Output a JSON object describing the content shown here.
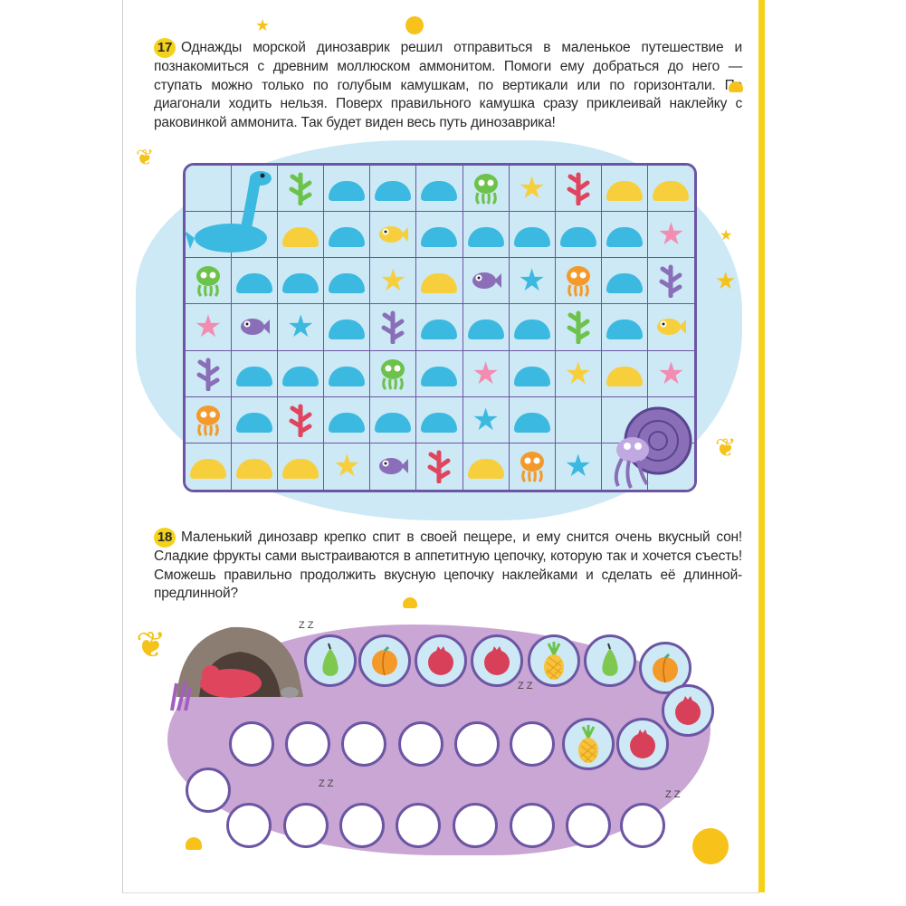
{
  "task17": {
    "number": "17",
    "text": "Однажды морской динозаврик решил отправиться в маленькое путешествие и познакомиться с древним моллюском аммонитом. Помоги ему добраться до него — ступать можно только по голубым камушкам, по вертикали или по горизонтали. По диагонали ходить нельзя. Поверх правильного камушка сразу приклеивай наклейку с раковинкой аммонита. Так будет виден весь путь динозаврика!"
  },
  "grid": {
    "rows": [
      [
        "dino",
        "dino",
        "seaweed-green",
        "blue",
        "blue",
        "blue",
        "jellyfish-green",
        "star-yellow",
        "seaweed-red",
        "yellow",
        "yellow"
      ],
      [
        "dino",
        "dino",
        "yellow",
        "blue",
        "fish-yellow",
        "blue",
        "blue",
        "blue",
        "blue",
        "blue",
        "star-pink"
      ],
      [
        "jellyfish-green",
        "blue",
        "blue",
        "blue",
        "star-yellow",
        "yellow",
        "fish-purple",
        "star-blue",
        "jellyfish-orange",
        "blue",
        "seaweed-purple"
      ],
      [
        "star-pink",
        "fish-purple",
        "star-blue",
        "blue",
        "seaweed-purple",
        "blue",
        "blue",
        "blue",
        "seaweed-green",
        "blue",
        "fish-yellow"
      ],
      [
        "seaweed-purple",
        "blue",
        "blue",
        "blue",
        "jellyfish-green",
        "blue",
        "star-pink",
        "blue",
        "star-yellow",
        "yellow",
        "star-pink"
      ],
      [
        "jellyfish-orange",
        "blue",
        "seaweed-red",
        "blue",
        "blue",
        "blue",
        "star-blue",
        "blue",
        "ammonite",
        "ammonite",
        "ammonite"
      ],
      [
        "yellow",
        "yellow",
        "yellow",
        "star-yellow",
        "fish-purple",
        "seaweed-red",
        "yellow",
        "jellyfish-orange",
        "star-blue",
        "ammonite",
        "ammonite"
      ]
    ]
  },
  "task18": {
    "number": "18",
    "text": "Маленький динозавр крепко спит в своей пещере, и ему снится очень вкусный сон! Сладкие фрукты сами выстраиваются в аппетитную цепочку, которую так и хочется съесть! Сможешь правильно продолжить вкусную цепочку наклейками и сделать её длинной-предлинной?"
  },
  "chain": [
    "pear",
    "apricot",
    "pomegranate",
    "pomegranate",
    "pineapple",
    "pear",
    "apricot",
    "pomegranate",
    "pomegranate",
    "pineapple",
    "empty",
    "empty",
    "empty",
    "empty",
    "empty",
    "empty",
    "empty",
    "empty",
    "empty",
    "empty",
    "empty",
    "empty",
    "empty",
    "empty",
    "empty"
  ],
  "sleep_marks": [
    "Z Z",
    "Z Z",
    "Z Z",
    "Z Z"
  ],
  "colors": {
    "accent": "#f5d21a",
    "grid_border": "#6c56a3",
    "blue_stone": "#3cb9e0",
    "yellow_stone": "#f7cf3c",
    "sea": "#cde9f5",
    "blob": "#c9a6d4"
  }
}
